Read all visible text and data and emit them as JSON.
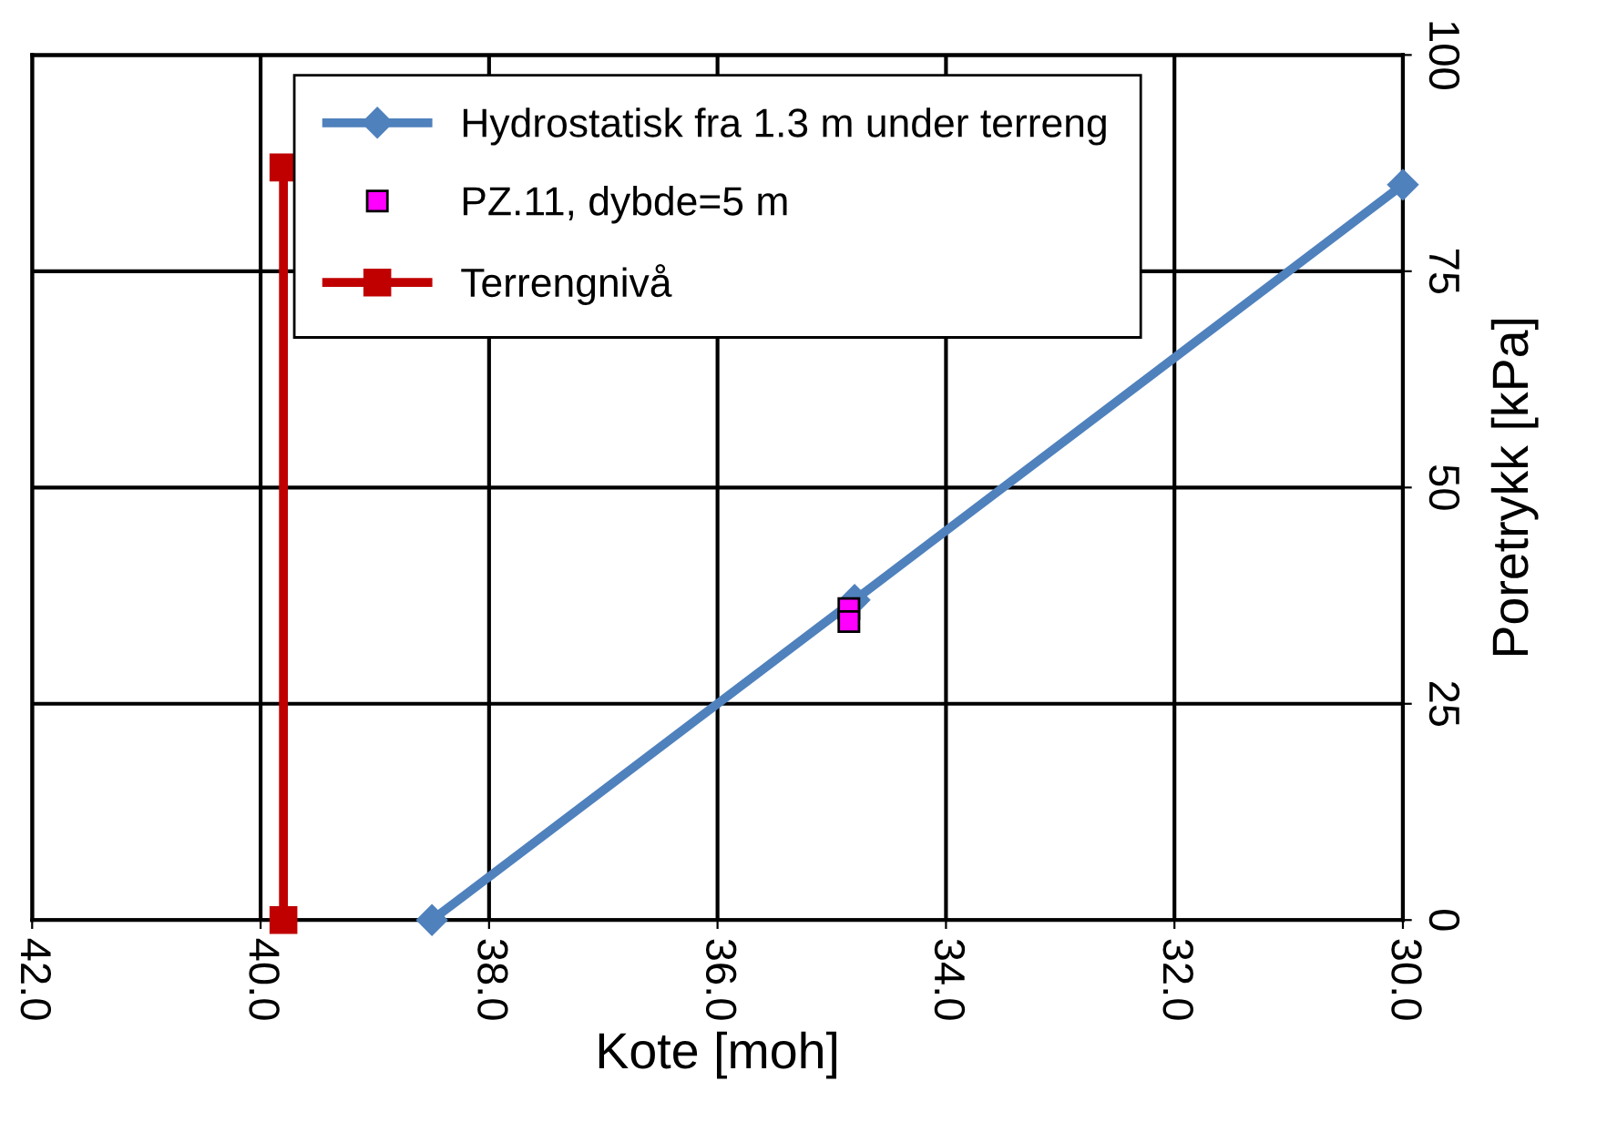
{
  "chart_data": {
    "type": "line",
    "xlabel": "Kote [moh]",
    "ylabel": "Poretrykk [kPa]",
    "xlim": [
      42.0,
      30.0
    ],
    "xticks": [
      {
        "value": 42,
        "label": "42.0"
      },
      {
        "value": 40,
        "label": "40.0"
      },
      {
        "value": 38,
        "label": "38.0"
      },
      {
        "value": 36,
        "label": "36.0"
      },
      {
        "value": 34,
        "label": "34.0"
      },
      {
        "value": 32,
        "label": "32.0"
      },
      {
        "value": 30,
        "label": "30.0"
      }
    ],
    "ylim": [
      0,
      100
    ],
    "yticks": [
      0,
      25,
      50,
      75,
      100
    ],
    "grid": true,
    "legend": "top",
    "series": [
      {
        "name": "Hydrostatisk fra 1.3 m under terreng",
        "color": "#4f81bd",
        "marker": "diamond",
        "x": [
          38.5,
          34.8,
          30.0
        ],
        "values": [
          0,
          37,
          85
        ]
      },
      {
        "name": "PZ.11, dybde=5 m",
        "type": "scatter",
        "color": "#ff00ff",
        "marker": "square",
        "x": [
          34.85,
          34.85
        ],
        "values": [
          36,
          34.5
        ]
      },
      {
        "name": "Terrengnivå",
        "color": "#c00000",
        "marker": "square",
        "x": [
          39.8,
          39.8
        ],
        "values": [
          0,
          87
        ]
      }
    ]
  }
}
